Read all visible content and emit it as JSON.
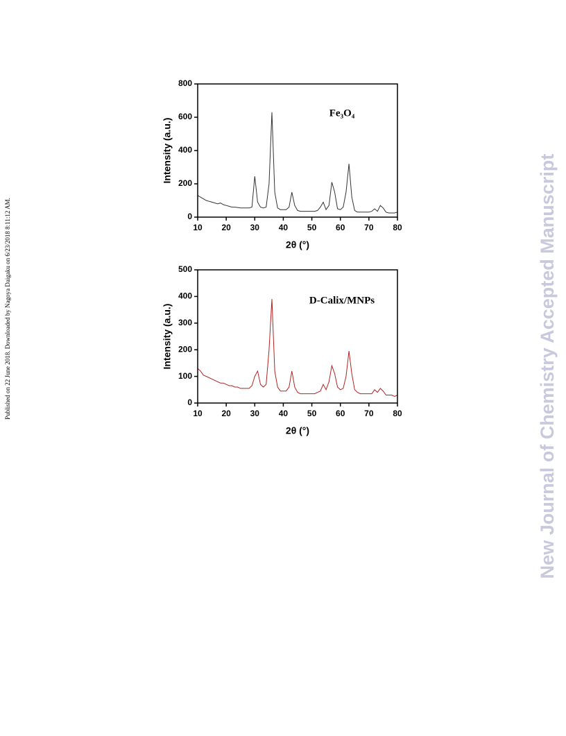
{
  "sidebar_left": "Published on 22 June 2018. Downloaded by Nagoya Daigaku on 6/23/2018 8:11:12 AM.",
  "watermark": "New Journal of Chemistry Accepted Manuscript",
  "chart_data": [
    {
      "type": "line",
      "annotation": "Fe₃O₄",
      "xlabel": "2θ (°)",
      "ylabel": "Intensity (a.u.)",
      "xlim": [
        10,
        80
      ],
      "xticks": [
        10,
        20,
        30,
        40,
        50,
        60,
        70,
        80
      ],
      "ylim": [
        0,
        800
      ],
      "yticks": [
        0,
        200,
        400,
        600,
        800
      ],
      "x": [
        10,
        11,
        12,
        13,
        14,
        15,
        16,
        17,
        18,
        19,
        20,
        21,
        22,
        23,
        24,
        25,
        26,
        27,
        28,
        29,
        30,
        31,
        32,
        33,
        34,
        35,
        36,
        37,
        38,
        39,
        40,
        41,
        42,
        43,
        44,
        45,
        46,
        47,
        48,
        49,
        50,
        51,
        52,
        53,
        54,
        55,
        56,
        57,
        58,
        59,
        60,
        61,
        62,
        63,
        64,
        65,
        66,
        67,
        68,
        69,
        70,
        71,
        72,
        73,
        74,
        75,
        76,
        77,
        78,
        79,
        80
      ],
      "series": [
        {
          "color": "#333333",
          "values": [
            130,
            120,
            110,
            100,
            95,
            90,
            85,
            80,
            85,
            75,
            70,
            65,
            60,
            60,
            58,
            55,
            55,
            55,
            55,
            60,
            245,
            90,
            60,
            55,
            60,
            200,
            630,
            150,
            55,
            45,
            45,
            45,
            60,
            150,
            70,
            40,
            35,
            35,
            35,
            35,
            35,
            35,
            40,
            60,
            90,
            45,
            70,
            210,
            150,
            50,
            45,
            60,
            150,
            320,
            120,
            40,
            30,
            30,
            30,
            30,
            30,
            35,
            50,
            35,
            70,
            55,
            30,
            25,
            25,
            25,
            30
          ]
        }
      ]
    },
    {
      "type": "line",
      "annotation": "D-Calix/MNPs",
      "xlabel": "2θ (°)",
      "ylabel": "Intensity (a.u.)",
      "xlim": [
        10,
        80
      ],
      "xticks": [
        10,
        20,
        30,
        40,
        50,
        60,
        70,
        80
      ],
      "ylim": [
        0,
        500
      ],
      "yticks": [
        0,
        100,
        200,
        300,
        400,
        500
      ],
      "x": [
        10,
        11,
        12,
        13,
        14,
        15,
        16,
        17,
        18,
        19,
        20,
        21,
        22,
        23,
        24,
        25,
        26,
        27,
        28,
        29,
        30,
        31,
        32,
        33,
        34,
        35,
        36,
        37,
        38,
        39,
        40,
        41,
        42,
        43,
        44,
        45,
        46,
        47,
        48,
        49,
        50,
        51,
        52,
        53,
        54,
        55,
        56,
        57,
        58,
        59,
        60,
        61,
        62,
        63,
        64,
        65,
        66,
        67,
        68,
        69,
        70,
        71,
        72,
        73,
        74,
        75,
        76,
        77,
        78,
        79,
        80
      ],
      "series": [
        {
          "color": "#b22222",
          "values": [
            130,
            120,
            105,
            100,
            95,
            90,
            85,
            80,
            75,
            75,
            70,
            65,
            65,
            60,
            60,
            55,
            55,
            55,
            55,
            65,
            100,
            120,
            70,
            60,
            70,
            200,
            390,
            120,
            60,
            45,
            45,
            45,
            60,
            120,
            60,
            40,
            35,
            35,
            35,
            35,
            35,
            35,
            40,
            45,
            70,
            50,
            80,
            140,
            110,
            60,
            50,
            55,
            100,
            195,
            110,
            50,
            40,
            35,
            35,
            35,
            35,
            35,
            50,
            40,
            55,
            45,
            30,
            30,
            30,
            25,
            30
          ]
        }
      ]
    }
  ]
}
